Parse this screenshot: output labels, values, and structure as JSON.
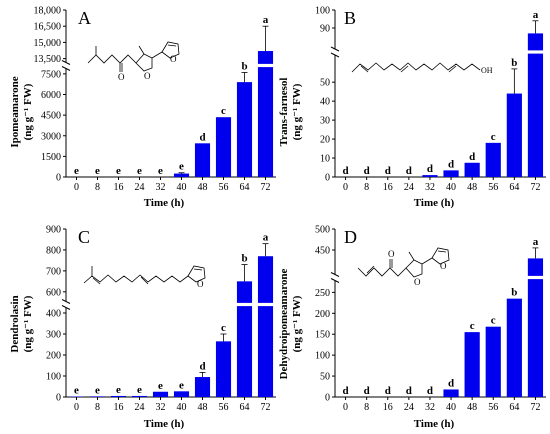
{
  "colors": {
    "bar": "#0000ee",
    "axis": "#000000",
    "background": "#ffffff"
  },
  "chart_data": [
    {
      "type": "bar",
      "panel_label": "A",
      "xlabel": "Time (h)",
      "ylabel": "Ipomeamarone",
      "ylabel_unit": "(ng g⁻¹ FW)",
      "categories": [
        "0",
        "8",
        "16",
        "24",
        "32",
        "40",
        "48",
        "56",
        "64",
        "72"
      ],
      "values": [
        0,
        0,
        0,
        0,
        0,
        250,
        2450,
        4350,
        6900,
        14200
      ],
      "errors": [
        0,
        0,
        0,
        0,
        0,
        60,
        0,
        0,
        700,
        2300
      ],
      "letters": [
        "e",
        "e",
        "e",
        "e",
        "e",
        "e",
        "d",
        "c",
        "b",
        "a"
      ],
      "axis_break": true,
      "y_lower_range": [
        0,
        8000
      ],
      "y_lower_ticks": [
        "0",
        "1500",
        "3000",
        "4500",
        "6000",
        "7500"
      ],
      "y_upper_range": [
        13000,
        18000
      ],
      "y_upper_ticks": [
        "13,500",
        "15,000",
        "16,500",
        "18,000"
      ],
      "structure_inset": "ipomeamarone"
    },
    {
      "type": "bar",
      "panel_label": "B",
      "xlabel": "Time (h)",
      "ylabel": "Trans-farnesol",
      "ylabel_unit": "(ng g⁻¹ FW)",
      "categories": [
        "0",
        "8",
        "16",
        "24",
        "32",
        "40",
        "48",
        "56",
        "64",
        "72"
      ],
      "values": [
        0,
        0,
        0,
        0,
        1,
        3.5,
        7.5,
        18,
        44,
        87
      ],
      "errors": [
        0,
        0,
        0,
        0,
        0,
        0,
        0,
        0,
        13,
        7
      ],
      "letters": [
        "d",
        "d",
        "d",
        "d",
        "d",
        "d",
        "d",
        "c",
        "b",
        "a"
      ],
      "axis_break": true,
      "y_lower_range": [
        0,
        58
      ],
      "y_lower_ticks": [
        "0",
        "10",
        "20",
        "30",
        "40",
        "50"
      ],
      "y_upper_range": [
        85,
        100
      ],
      "y_upper_ticks": [
        "90",
        "100"
      ],
      "structure_inset": "trans-farnesol"
    },
    {
      "type": "bar",
      "panel_label": "C",
      "xlabel": "Time (h)",
      "ylabel": "Dendrolasin",
      "ylabel_unit": "(ng g⁻¹ FW)",
      "categories": [
        "0",
        "8",
        "16",
        "24",
        "32",
        "40",
        "48",
        "56",
        "64",
        "72"
      ],
      "values": [
        2,
        3,
        5,
        5,
        25,
        27,
        95,
        265,
        650,
        770
      ],
      "errors": [
        0,
        0,
        0,
        0,
        0,
        0,
        22,
        35,
        80,
        60
      ],
      "letters": [
        "e",
        "e",
        "e",
        "e",
        "e",
        "e",
        "d",
        "c",
        "b",
        "a"
      ],
      "axis_break": true,
      "y_lower_range": [
        0,
        400
      ],
      "y_lower_ticks": [
        "0",
        "100",
        "200",
        "300",
        "400"
      ],
      "y_upper_range": [
        580,
        900
      ],
      "y_upper_ticks": [
        "600",
        "700",
        "800",
        "900"
      ],
      "structure_inset": "dendrolasin"
    },
    {
      "type": "bar",
      "panel_label": "D",
      "xlabel": "Time (h)",
      "ylabel": "Dehydroipomeamarone",
      "ylabel_unit": "(ng g⁻¹ FW)",
      "categories": [
        "0",
        "8",
        "16",
        "24",
        "32",
        "40",
        "48",
        "56",
        "64",
        "72"
      ],
      "values": [
        0,
        0,
        0,
        0,
        0,
        18,
        155,
        168,
        235,
        430
      ],
      "errors": [
        0,
        0,
        0,
        0,
        0,
        0,
        0,
        0,
        0,
        25
      ],
      "letters": [
        "d",
        "d",
        "d",
        "d",
        "d",
        "d",
        "c",
        "c",
        "b",
        "a"
      ],
      "axis_break": true,
      "y_lower_range": [
        0,
        270
      ],
      "y_lower_ticks": [
        "0",
        "50",
        "100",
        "150",
        "200",
        "250"
      ],
      "y_upper_range": [
        400,
        500
      ],
      "y_upper_ticks": [
        "450",
        "500"
      ],
      "structure_inset": "dehydroipomeamarone"
    }
  ]
}
